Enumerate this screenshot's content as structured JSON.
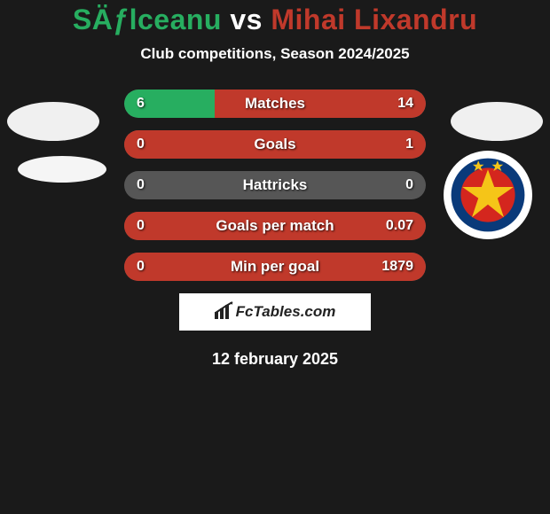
{
  "header": {
    "player1_name": "SÄƒlceanu",
    "vs_text": "vs",
    "player2_name": "Mihai Lixandru",
    "player1_color": "#27ae60",
    "player2_color": "#c0392b",
    "subtitle": "Club competitions, Season 2024/2025"
  },
  "stats": [
    {
      "label": "Matches",
      "left_val": "6",
      "right_val": "14",
      "left_pct": 30,
      "right_pct": 70,
      "left_color": "#27ae60",
      "right_color": "#c0392b",
      "bg_color": "#565656"
    },
    {
      "label": "Goals",
      "left_val": "0",
      "right_val": "1",
      "left_pct": 0,
      "right_pct": 100,
      "left_color": "#27ae60",
      "right_color": "#c0392b",
      "bg_color": "#565656"
    },
    {
      "label": "Hattricks",
      "left_val": "0",
      "right_val": "0",
      "left_pct": 0,
      "right_pct": 0,
      "left_color": "#27ae60",
      "right_color": "#c0392b",
      "bg_color": "#565656"
    },
    {
      "label": "Goals per match",
      "left_val": "0",
      "right_val": "0.07",
      "left_pct": 0,
      "right_pct": 100,
      "left_color": "#27ae60",
      "right_color": "#c0392b",
      "bg_color": "#565656"
    },
    {
      "label": "Min per goal",
      "left_val": "0",
      "right_val": "1879",
      "left_pct": 0,
      "right_pct": 100,
      "left_color": "#27ae60",
      "right_color": "#c0392b",
      "bg_color": "#565656"
    }
  ],
  "footer": {
    "brand_text": "FcTables.com",
    "date_text": "12 february 2025"
  },
  "badge": {
    "outer_bg": "#ffffff",
    "ring_color": "#0a3a7a",
    "ring_inner": "#d4261e",
    "star_color": "#f5c518",
    "top_star_color": "#f5c518"
  }
}
